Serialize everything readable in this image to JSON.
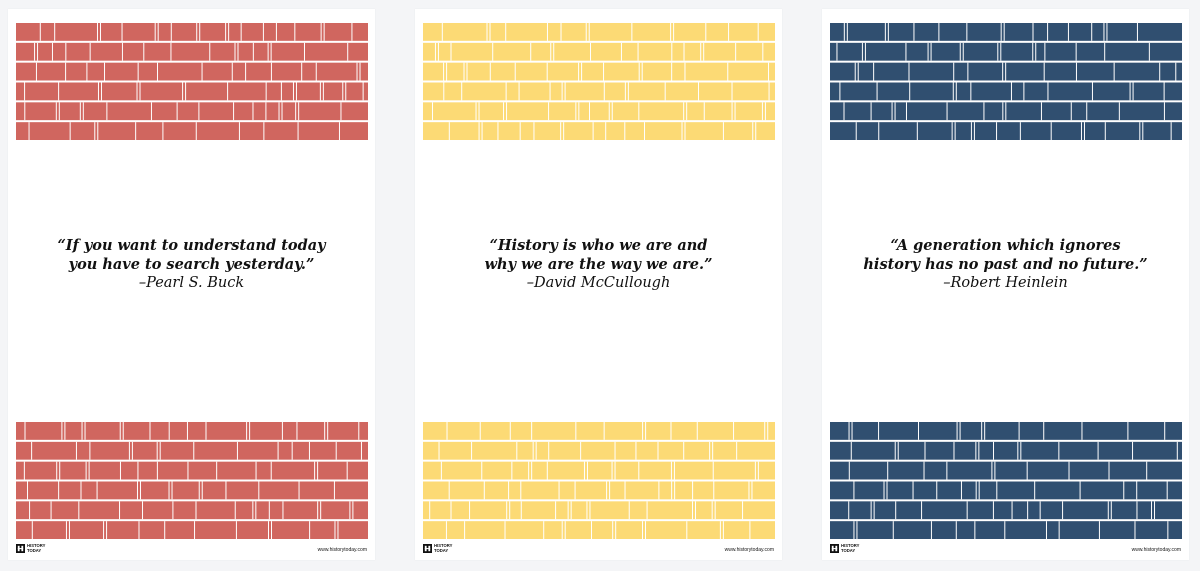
{
  "colors": {
    "background": "#f4f5f7",
    "card": "#ffffff",
    "brick_lines": "#ffffff"
  },
  "posters": [
    {
      "brick_color": "#d0665f",
      "quote_lines": [
        "“If you want to understand today",
        "you have to search yesterday.”"
      ],
      "author": "–Pearl S. Buck",
      "brand": "HISTORY TODAY",
      "site": "www.historytoday.com"
    },
    {
      "brick_color": "#fcda75",
      "quote_lines": [
        "“History is who we are and",
        "why we are the way we are.”"
      ],
      "author": "–David McCullough",
      "brand": "HISTORY TODAY",
      "site": "www.historytoday.com"
    },
    {
      "brick_color": "#304f70",
      "quote_lines": [
        "“A generation which ignores",
        "history has no past and no future.”"
      ],
      "author": "–Robert Heinlein",
      "brand": "HISTORY TODAY",
      "site": "www.historytoday.com"
    }
  ]
}
